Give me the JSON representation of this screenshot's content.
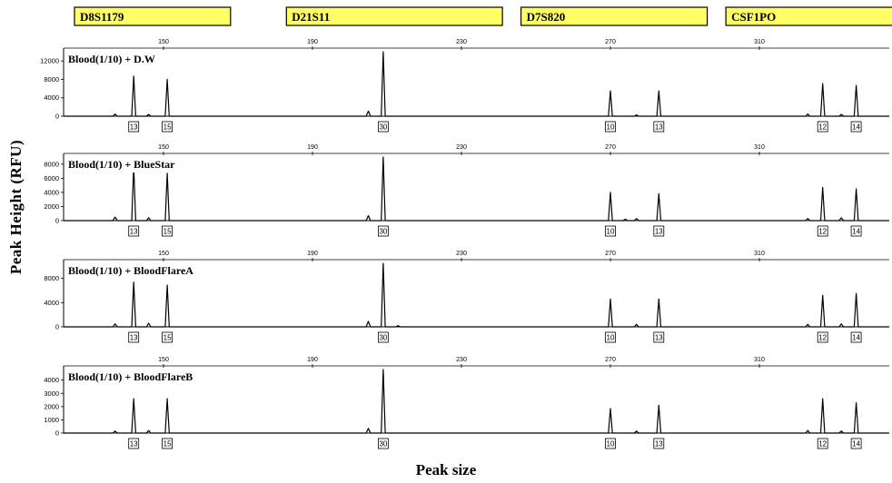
{
  "chart_data": {
    "type": "line",
    "ylabel": "Peak Height (RFU)",
    "xlabel": "Peak size",
    "size_ticks": [
      150,
      190,
      230,
      270,
      310
    ],
    "loci": [
      {
        "name": "D8S1179",
        "range": [
          112,
          168
        ]
      },
      {
        "name": "D21S11",
        "range": [
          183,
          241
        ]
      },
      {
        "name": "D7S820",
        "range": [
          246,
          296
        ]
      },
      {
        "name": "CSF1PO",
        "range": [
          301,
          352
        ]
      }
    ],
    "panels": [
      {
        "label": "Blood(1/10) + D.W",
        "y_ticks": [
          0,
          4000,
          8000,
          12000
        ],
        "y_max": 14000,
        "peaks": [
          {
            "size": 142,
            "height": 8700,
            "allele": "13"
          },
          {
            "size": 151,
            "height": 8000,
            "allele": "15"
          },
          {
            "size": 209,
            "height": 14000,
            "allele": "30"
          },
          {
            "size": 270,
            "height": 5500,
            "allele": "10"
          },
          {
            "size": 283,
            "height": 5500,
            "allele": "13"
          },
          {
            "size": 327,
            "height": 7100,
            "allele": "12"
          },
          {
            "size": 336,
            "height": 6700,
            "allele": "14"
          }
        ],
        "minor_peaks": [
          {
            "size": 137,
            "height": 500
          },
          {
            "size": 146,
            "height": 400
          },
          {
            "size": 205,
            "height": 1100
          },
          {
            "size": 277,
            "height": 300
          },
          {
            "size": 323,
            "height": 500
          },
          {
            "size": 332,
            "height": 400
          }
        ]
      },
      {
        "label": "Blood(1/10) + BlueStar",
        "y_ticks": [
          0,
          2000,
          4000,
          6000,
          8000
        ],
        "y_max": 9000,
        "peaks": [
          {
            "size": 142,
            "height": 7600,
            "allele": "13"
          },
          {
            "size": 151,
            "height": 6700,
            "allele": "15"
          },
          {
            "size": 209,
            "height": 9000,
            "allele": "30"
          },
          {
            "size": 270,
            "height": 4000,
            "allele": "10"
          },
          {
            "size": 283,
            "height": 3800,
            "allele": "13"
          },
          {
            "size": 327,
            "height": 4700,
            "allele": "12"
          },
          {
            "size": 336,
            "height": 4500,
            "allele": "14"
          }
        ],
        "minor_peaks": [
          {
            "size": 137,
            "height": 500
          },
          {
            "size": 146,
            "height": 400
          },
          {
            "size": 205,
            "height": 700
          },
          {
            "size": 274,
            "height": 200
          },
          {
            "size": 277,
            "height": 300
          },
          {
            "size": 323,
            "height": 300
          },
          {
            "size": 332,
            "height": 400
          }
        ]
      },
      {
        "label": "Blood(1/10) + BloodFlareA",
        "y_ticks": [
          0,
          4000,
          8000
        ],
        "y_max": 10500,
        "peaks": [
          {
            "size": 142,
            "height": 7400,
            "allele": "13"
          },
          {
            "size": 151,
            "height": 6900,
            "allele": "15"
          },
          {
            "size": 209,
            "height": 10500,
            "allele": "30"
          },
          {
            "size": 270,
            "height": 4600,
            "allele": "10"
          },
          {
            "size": 283,
            "height": 4600,
            "allele": "13"
          },
          {
            "size": 327,
            "height": 5200,
            "allele": "12"
          },
          {
            "size": 336,
            "height": 5500,
            "allele": "14"
          }
        ],
        "minor_peaks": [
          {
            "size": 137,
            "height": 500
          },
          {
            "size": 146,
            "height": 600
          },
          {
            "size": 205,
            "height": 900
          },
          {
            "size": 213,
            "height": 200
          },
          {
            "size": 277,
            "height": 400
          },
          {
            "size": 323,
            "height": 400
          },
          {
            "size": 332,
            "height": 500
          }
        ]
      },
      {
        "label": "Blood(1/10) + BloodFlareB",
        "y_ticks": [
          0,
          1000,
          2000,
          3000,
          4000
        ],
        "y_max": 4800,
        "peaks": [
          {
            "size": 142,
            "height": 2600,
            "allele": "13"
          },
          {
            "size": 151,
            "height": 2600,
            "allele": "15"
          },
          {
            "size": 209,
            "height": 4800,
            "allele": "30"
          },
          {
            "size": 270,
            "height": 1850,
            "allele": "10"
          },
          {
            "size": 283,
            "height": 2100,
            "allele": "13"
          },
          {
            "size": 327,
            "height": 2600,
            "allele": "12"
          },
          {
            "size": 336,
            "height": 2300,
            "allele": "14"
          }
        ],
        "minor_peaks": [
          {
            "size": 137,
            "height": 150
          },
          {
            "size": 146,
            "height": 200
          },
          {
            "size": 205,
            "height": 350
          },
          {
            "size": 277,
            "height": 150
          },
          {
            "size": 323,
            "height": 200
          },
          {
            "size": 332,
            "height": 150
          }
        ]
      }
    ]
  }
}
